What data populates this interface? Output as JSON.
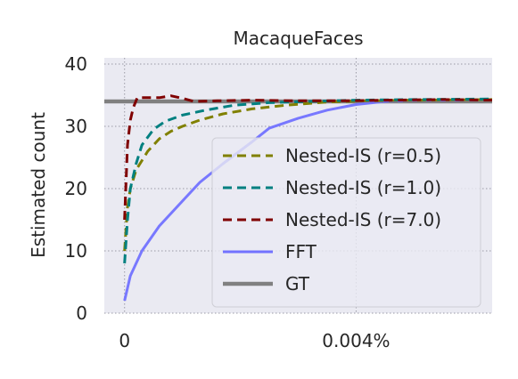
{
  "chart_data": {
    "type": "line",
    "title": "MacaqueFaces",
    "xlabel": "",
    "ylabel": "Estimated count",
    "xlim": [
      -0.00035,
      0.00635
    ],
    "ylim": [
      0,
      41
    ],
    "x_ticks": [
      {
        "value": 0,
        "label": "0"
      },
      {
        "value": 0.004,
        "label": "0.004%"
      }
    ],
    "y_ticks": [
      0,
      10,
      20,
      30,
      40
    ],
    "grid": true,
    "legend_position": "center-right",
    "series": [
      {
        "name": "Nested-IS (r=0.5)",
        "color": "#808000",
        "style": "dashed",
        "points": [
          [
            0,
            10
          ],
          [
            5e-05,
            17
          ],
          [
            0.0001,
            20
          ],
          [
            0.0002,
            23
          ],
          [
            0.0004,
            26
          ],
          [
            0.0006,
            28
          ],
          [
            0.0008,
            29.2
          ],
          [
            0.001,
            30
          ],
          [
            0.0013,
            31
          ],
          [
            0.0017,
            32
          ],
          [
            0.0022,
            32.8
          ],
          [
            0.0028,
            33.4
          ],
          [
            0.0035,
            33.9
          ],
          [
            0.0042,
            34.1
          ],
          [
            0.005,
            34.2
          ],
          [
            0.0064,
            34.3
          ]
        ]
      },
      {
        "name": "Nested-IS (r=1.0)",
        "color": "#008080",
        "style": "dashed",
        "points": [
          [
            0,
            8
          ],
          [
            5e-05,
            15
          ],
          [
            0.0001,
            20
          ],
          [
            0.0002,
            24
          ],
          [
            0.0003,
            27
          ],
          [
            0.0005,
            29.5
          ],
          [
            0.0007,
            30.8
          ],
          [
            0.001,
            31.8
          ],
          [
            0.0014,
            32.6
          ],
          [
            0.0019,
            33.4
          ],
          [
            0.0025,
            33.8
          ],
          [
            0.0032,
            34
          ],
          [
            0.004,
            34.2
          ],
          [
            0.005,
            34.3
          ],
          [
            0.0064,
            34.4
          ]
        ]
      },
      {
        "name": "Nested-IS (r=7.0)",
        "color": "#800000",
        "style": "dashed",
        "points": [
          [
            0,
            15
          ],
          [
            5e-05,
            27
          ],
          [
            0.0001,
            31
          ],
          [
            0.00015,
            33
          ],
          [
            0.00022,
            34.6
          ],
          [
            0.0004,
            34.6
          ],
          [
            0.0006,
            34.6
          ],
          [
            0.0008,
            34.9
          ],
          [
            0.001,
            34.5
          ],
          [
            0.0012,
            34
          ],
          [
            0.0016,
            34.1
          ],
          [
            0.0022,
            34.2
          ],
          [
            0.003,
            34.1
          ],
          [
            0.0038,
            34.1
          ],
          [
            0.0045,
            34.2
          ],
          [
            0.0055,
            34.3
          ],
          [
            0.0064,
            34.2
          ]
        ]
      },
      {
        "name": "FFT",
        "color": "#7272ff",
        "style": "solid",
        "points": [
          [
            0,
            2
          ],
          [
            0.0001,
            6
          ],
          [
            0.0003,
            10
          ],
          [
            0.0006,
            14
          ],
          [
            0.001,
            18
          ],
          [
            0.0013,
            21
          ],
          [
            0.0017,
            24
          ],
          [
            0.0022,
            27.5
          ],
          [
            0.0025,
            29.7
          ],
          [
            0.003,
            31.3
          ],
          [
            0.0035,
            32.6
          ],
          [
            0.004,
            33.5
          ],
          [
            0.0045,
            34
          ],
          [
            0.005,
            34.2
          ],
          [
            0.0057,
            34.2
          ],
          [
            0.0064,
            34.3
          ]
        ]
      },
      {
        "name": "GT",
        "color": "#808080",
        "style": "solid",
        "points": [
          [
            -0.00035,
            34
          ],
          [
            0.00635,
            34
          ]
        ]
      }
    ]
  }
}
